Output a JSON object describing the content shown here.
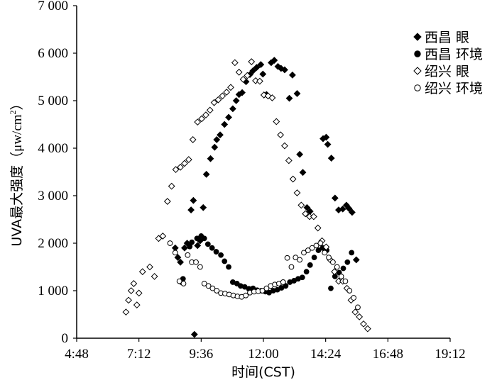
{
  "chart_data": {
    "type": "scatter",
    "xlabel": "时间(CST)",
    "ylabel": "UVA最大强度（μw/cm²）",
    "ylabel_parts": {
      "main": "UVA最大强度",
      "unit_open": "（",
      "unit_mu": "μ",
      "unit_rest": "w/cm",
      "unit_sup": "2",
      "unit_close": "）"
    },
    "xlim_hours": [
      4.8,
      19.2
    ],
    "ylim": [
      0,
      7000
    ],
    "x_ticks": [
      {
        "hour": 4.8,
        "label": "4:48"
      },
      {
        "hour": 7.2,
        "label": "7:12"
      },
      {
        "hour": 9.6,
        "label": "9:36"
      },
      {
        "hour": 12.0,
        "label": "12:00"
      },
      {
        "hour": 14.4,
        "label": "14:24"
      },
      {
        "hour": 16.8,
        "label": "16:48"
      },
      {
        "hour": 19.2,
        "label": "19:12"
      }
    ],
    "y_ticks": [
      {
        "value": 0,
        "label": "0"
      },
      {
        "value": 1000,
        "label": "1 000"
      },
      {
        "value": 2000,
        "label": "2 000"
      },
      {
        "value": 3000,
        "label": "3 000"
      },
      {
        "value": 4000,
        "label": "4 000"
      },
      {
        "value": 5000,
        "label": "5 000"
      },
      {
        "value": 6000,
        "label": "6 000"
      },
      {
        "value": 7000,
        "label": "7 000"
      }
    ],
    "grid": false,
    "legend_position": "top-right",
    "series": [
      {
        "name": "西昌 眼",
        "marker": "diamond",
        "filled": true,
        "points": [
          [
            9.34,
            80
          ],
          [
            8.96,
            1900
          ],
          [
            9.06,
            2000
          ],
          [
            9.21,
            2700
          ],
          [
            9.3,
            2900
          ],
          [
            9.46,
            1950
          ],
          [
            9.56,
            2050
          ],
          [
            9.68,
            2750
          ],
          [
            9.8,
            3450
          ],
          [
            9.96,
            3780
          ],
          [
            10.12,
            4020
          ],
          [
            10.2,
            4180
          ],
          [
            10.33,
            4280
          ],
          [
            10.5,
            4500
          ],
          [
            10.66,
            4650
          ],
          [
            10.82,
            4830
          ],
          [
            10.95,
            5000
          ],
          [
            11.06,
            5130
          ],
          [
            11.18,
            5170
          ],
          [
            11.33,
            5400
          ],
          [
            11.48,
            5550
          ],
          [
            11.6,
            5630
          ],
          [
            11.74,
            5700
          ],
          [
            11.9,
            5760
          ],
          [
            11.98,
            5560
          ],
          [
            12.12,
            5130
          ],
          [
            12.3,
            5800
          ],
          [
            12.42,
            5850
          ],
          [
            12.56,
            5720
          ],
          [
            12.68,
            5680
          ],
          [
            12.82,
            5650
          ],
          [
            13.0,
            5050
          ],
          [
            13.12,
            5540
          ],
          [
            13.3,
            5150
          ],
          [
            13.4,
            3870
          ],
          [
            13.52,
            3490
          ],
          [
            13.68,
            2750
          ],
          [
            13.8,
            2670
          ],
          [
            14.3,
            4200
          ],
          [
            14.42,
            4230
          ],
          [
            14.48,
            4080
          ],
          [
            14.62,
            3790
          ],
          [
            14.76,
            2950
          ],
          [
            14.9,
            2700
          ],
          [
            15.06,
            2720
          ],
          [
            15.2,
            2800
          ],
          [
            15.3,
            2730
          ],
          [
            15.42,
            2650
          ],
          [
            15.58,
            1650
          ],
          [
            8.6,
            1900
          ],
          [
            8.7,
            1700
          ],
          [
            8.8,
            1600
          ]
        ]
      },
      {
        "name": "西昌 环境",
        "marker": "circle",
        "filled": true,
        "points": [
          [
            8.9,
            1250
          ],
          [
            9.16,
            1930
          ],
          [
            9.24,
            2020
          ],
          [
            9.44,
            2100
          ],
          [
            9.6,
            2150
          ],
          [
            9.72,
            2100
          ],
          [
            9.86,
            1980
          ],
          [
            10.02,
            1900
          ],
          [
            10.18,
            1820
          ],
          [
            10.36,
            1750
          ],
          [
            10.5,
            1620
          ],
          [
            10.66,
            1500
          ],
          [
            10.82,
            1180
          ],
          [
            10.98,
            1150
          ],
          [
            11.12,
            1100
          ],
          [
            11.28,
            1080
          ],
          [
            11.44,
            1040
          ],
          [
            11.6,
            1050
          ],
          [
            11.76,
            1010
          ],
          [
            11.92,
            1000
          ],
          [
            12.08,
            980
          ],
          [
            12.22,
            960
          ],
          [
            12.38,
            1000
          ],
          [
            12.54,
            1020
          ],
          [
            12.7,
            1060
          ],
          [
            12.86,
            1100
          ],
          [
            13.02,
            1180
          ],
          [
            13.18,
            1210
          ],
          [
            13.34,
            1250
          ],
          [
            13.5,
            1280
          ],
          [
            13.66,
            1400
          ],
          [
            13.8,
            1540
          ],
          [
            13.96,
            1700
          ],
          [
            14.12,
            1850
          ],
          [
            14.28,
            1900
          ],
          [
            14.44,
            1850
          ],
          [
            14.6,
            1050
          ],
          [
            14.76,
            1300
          ],
          [
            14.92,
            1380
          ],
          [
            15.08,
            1470
          ],
          [
            15.24,
            1600
          ],
          [
            15.4,
            1800
          ],
          [
            8.84,
            1180
          ]
        ]
      },
      {
        "name": "绍兴 眼",
        "marker": "diamond",
        "filled": false,
        "points": [
          [
            6.7,
            550
          ],
          [
            6.8,
            800
          ],
          [
            6.9,
            1000
          ],
          [
            7.0,
            1150
          ],
          [
            7.12,
            700
          ],
          [
            7.2,
            950
          ],
          [
            7.34,
            1400
          ],
          [
            7.62,
            1500
          ],
          [
            7.8,
            1300
          ],
          [
            7.96,
            2100
          ],
          [
            8.12,
            2150
          ],
          [
            8.3,
            2880
          ],
          [
            8.46,
            3200
          ],
          [
            8.62,
            3550
          ],
          [
            8.8,
            3600
          ],
          [
            8.96,
            3680
          ],
          [
            9.12,
            3760
          ],
          [
            9.28,
            4180
          ],
          [
            9.46,
            4550
          ],
          [
            9.62,
            4620
          ],
          [
            9.78,
            4700
          ],
          [
            9.94,
            4800
          ],
          [
            10.1,
            4960
          ],
          [
            10.26,
            5020
          ],
          [
            10.42,
            5100
          ],
          [
            10.58,
            5180
          ],
          [
            10.74,
            5280
          ],
          [
            10.9,
            5800
          ],
          [
            11.06,
            5600
          ],
          [
            11.22,
            5450
          ],
          [
            11.38,
            5530
          ],
          [
            11.54,
            5820
          ],
          [
            11.7,
            5420
          ],
          [
            11.86,
            5410
          ],
          [
            12.02,
            5120
          ],
          [
            12.18,
            5100
          ],
          [
            12.34,
            5060
          ],
          [
            12.5,
            4560
          ],
          [
            12.66,
            4280
          ],
          [
            12.82,
            4050
          ],
          [
            12.98,
            3740
          ],
          [
            13.14,
            3350
          ],
          [
            13.3,
            3060
          ],
          [
            13.46,
            2800
          ],
          [
            13.62,
            2620
          ],
          [
            13.78,
            2560
          ],
          [
            13.94,
            2560
          ],
          [
            14.1,
            2320
          ],
          [
            14.26,
            2050
          ],
          [
            14.42,
            1920
          ],
          [
            14.58,
            1650
          ],
          [
            14.74,
            1400
          ],
          [
            14.9,
            1200
          ],
          [
            15.06,
            1200
          ],
          [
            15.22,
            1050
          ],
          [
            15.38,
            800
          ],
          [
            15.54,
            550
          ],
          [
            15.7,
            450
          ],
          [
            15.86,
            300
          ],
          [
            16.02,
            200
          ]
        ]
      },
      {
        "name": "绍兴 环境",
        "marker": "circle",
        "filled": false,
        "points": [
          [
            8.4,
            2000
          ],
          [
            8.6,
            1800
          ],
          [
            8.76,
            1200
          ],
          [
            8.92,
            1150
          ],
          [
            9.08,
            1750
          ],
          [
            9.24,
            1600
          ],
          [
            9.4,
            1600
          ],
          [
            9.56,
            1500
          ],
          [
            9.72,
            1150
          ],
          [
            9.88,
            1100
          ],
          [
            10.04,
            1050
          ],
          [
            10.2,
            1000
          ],
          [
            10.36,
            950
          ],
          [
            10.52,
            940
          ],
          [
            10.68,
            920
          ],
          [
            10.84,
            900
          ],
          [
            11.0,
            880
          ],
          [
            11.16,
            870
          ],
          [
            11.32,
            900
          ],
          [
            11.48,
            960
          ],
          [
            11.64,
            980
          ],
          [
            11.8,
            990
          ],
          [
            11.96,
            1000
          ],
          [
            12.12,
            1050
          ],
          [
            12.28,
            1100
          ],
          [
            12.44,
            1130
          ],
          [
            12.6,
            1150
          ],
          [
            12.76,
            1180
          ],
          [
            12.92,
            1690
          ],
          [
            13.08,
            1500
          ],
          [
            13.24,
            1700
          ],
          [
            13.4,
            1650
          ],
          [
            13.56,
            1800
          ],
          [
            13.72,
            1850
          ],
          [
            13.88,
            1900
          ],
          [
            14.04,
            1950
          ],
          [
            14.2,
            2000
          ],
          [
            14.36,
            1800
          ],
          [
            14.52,
            1700
          ],
          [
            14.68,
            1600
          ],
          [
            14.84,
            1500
          ],
          [
            15.0,
            1300
          ],
          [
            15.16,
            1200
          ],
          [
            15.32,
            1000
          ],
          [
            15.48,
            850
          ],
          [
            15.64,
            650
          ]
        ]
      }
    ]
  }
}
